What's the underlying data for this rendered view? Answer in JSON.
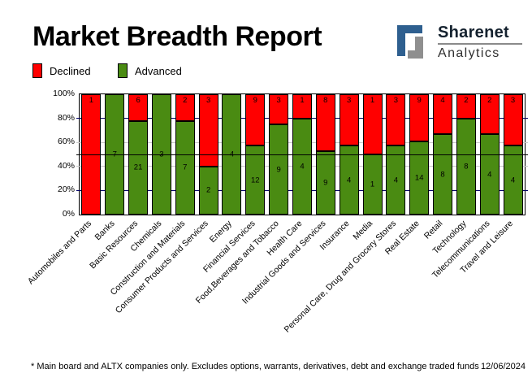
{
  "header": {
    "title": "Market Breadth Report",
    "logo": {
      "line1": "Sharenet",
      "line2": "Analytics",
      "icon_blue": "#2e5f8f",
      "icon_gray": "#8f8f8f"
    }
  },
  "legend": {
    "items": [
      {
        "label": "Declined",
        "color": "#ff0000"
      },
      {
        "label": "Advanced",
        "color": "#4a8b12"
      }
    ]
  },
  "chart_data": {
    "type": "bar",
    "stacking": "percent",
    "title": "Market Breadth Report",
    "xlabel": "",
    "ylabel": "",
    "ylim": [
      "0%",
      "100%"
    ],
    "grid": true,
    "legend_position": "top-left",
    "categories": [
      "Automobiles and Parts",
      "Banks",
      "Basic Resources",
      "Chemicals",
      "Construction and Materials",
      "Consumer Products and Services",
      "Energy",
      "Financial Services",
      "Food,Beverages and Tobacco",
      "Health Care",
      "Industrial Goods and Services",
      "Insurance",
      "Media",
      "Personal Care, Drug and Grocery Stores",
      "Real Estate",
      "Retail",
      "Technology",
      "Telecommunications",
      "Travel and Leisure"
    ],
    "series": [
      {
        "name": "Declined",
        "color": "#ff0000",
        "values": [
          1,
          0,
          6,
          0,
          2,
          3,
          0,
          9,
          3,
          1,
          8,
          3,
          1,
          3,
          9,
          4,
          2,
          2,
          3
        ]
      },
      {
        "name": "Advanced",
        "color": "#4a8b12",
        "values": [
          0,
          7,
          21,
          3,
          7,
          2,
          4,
          12,
          9,
          4,
          9,
          4,
          1,
          4,
          14,
          8,
          8,
          4,
          4
        ]
      }
    ],
    "y_ticks": [
      {
        "label": "100%",
        "pct": 100
      },
      {
        "label": "80%",
        "pct": 80
      },
      {
        "label": "60%",
        "pct": 60
      },
      {
        "label": "40%",
        "pct": 40
      },
      {
        "label": "20%",
        "pct": 20
      },
      {
        "label": "0%",
        "pct": 0
      }
    ],
    "gridlines": [
      {
        "pct": 80,
        "color": "#000066",
        "front": false
      },
      {
        "pct": 60,
        "color": "#c9c9c9",
        "front": false
      },
      {
        "pct": 50,
        "color": "#000000",
        "front": true
      },
      {
        "pct": 40,
        "color": "#c9c9c9",
        "front": false
      },
      {
        "pct": 20,
        "color": "#000066",
        "front": false
      }
    ]
  },
  "footer": {
    "note": "* Main board and ALTX companies only. Excludes options, warrants, derivatives, debt and exchange traded funds",
    "date": "12/06/2024"
  }
}
